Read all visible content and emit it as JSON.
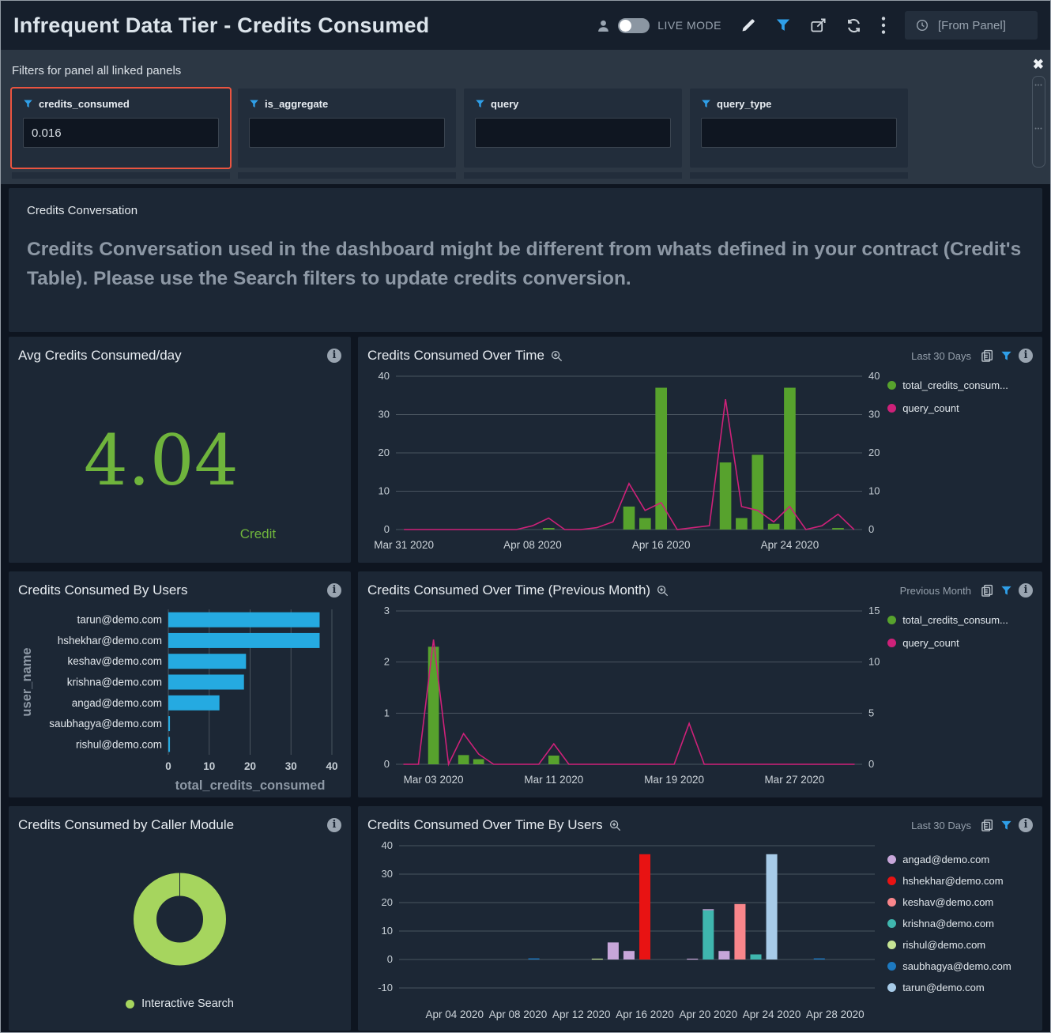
{
  "header": {
    "title": "Infrequent Data Tier - Credits Consumed",
    "live_mode_label": "LIVE MODE",
    "time_range": "[From Panel]"
  },
  "filters": {
    "heading": "Filters for panel all linked panels",
    "items": [
      {
        "label": "credits_consumed",
        "value": "0.016",
        "highlighted": true
      },
      {
        "label": "is_aggregate",
        "value": "",
        "highlighted": false
      },
      {
        "label": "query",
        "value": "",
        "highlighted": false
      },
      {
        "label": "query_type",
        "value": "",
        "highlighted": false
      }
    ]
  },
  "note_panel": {
    "title": "Credits Conversation",
    "body": "Credits Conversation used in the dashboard might be different from whats defined in your contract (Credit's Table). Please use the Search filters to update credits conversion."
  },
  "panels": {
    "avg": {
      "title": "Avg Credits Consumed/day",
      "value": "4.04",
      "unit": "Credit"
    },
    "over_time": {
      "title": "Credits Consumed Over Time",
      "range": "Last 30 Days"
    },
    "by_users": {
      "title": "Credits Consumed By Users"
    },
    "prev_month": {
      "title": "Credits Consumed Over Time (Previous Month)",
      "range": "Previous Month"
    },
    "caller_module": {
      "title": "Credits Consumed by Caller Module"
    },
    "by_users_time": {
      "title": "Credits Consumed Over Time By Users",
      "range": "Last 30 Days"
    }
  },
  "colors": {
    "accent_blue": "#2f9fe8",
    "highlight_red": "#ea5440",
    "bar_green": "#57a22d",
    "line_magenta": "#ce2179",
    "bar_blue": "#25aae1",
    "donut_green": "#a6d55e",
    "big_number_green": "#6fb43c"
  },
  "chart_data": [
    {
      "id": "over_time",
      "type": "bar",
      "subtype": "bar+line",
      "title": "Credits Consumed Over Time",
      "x_days": 29,
      "x_start": "Mar 31 2020",
      "x_ticks": [
        [
          0,
          "Mar 31 2020"
        ],
        [
          8,
          "Apr 08 2020"
        ],
        [
          16,
          "Apr 16 2020"
        ],
        [
          24,
          "Apr 24 2020"
        ]
      ],
      "left_ticks": [
        0,
        10,
        20,
        30,
        40
      ],
      "left_max": 40,
      "right_ticks": [
        0,
        10,
        20,
        30,
        40
      ],
      "right_max": 40,
      "legend": [
        "total_credits_consum...",
        "query_count"
      ],
      "bars": {
        "name": "total_credits_consumed",
        "color": "#57a22d",
        "values": [
          0,
          0,
          0,
          0,
          0,
          0,
          0,
          0,
          0,
          0.4,
          0,
          0,
          0,
          0,
          6,
          3,
          37,
          0,
          0,
          0,
          17.5,
          3,
          19.5,
          1.5,
          37,
          0,
          0,
          0.4,
          0
        ]
      },
      "line": {
        "name": "query_count",
        "color": "#ce2179",
        "values": [
          0,
          0,
          0,
          0,
          0,
          0,
          0,
          0,
          1,
          3,
          0,
          0,
          0.5,
          2,
          12,
          5,
          7,
          0,
          0.5,
          1,
          34,
          6,
          5,
          2,
          6,
          0,
          1,
          4,
          0
        ]
      }
    },
    {
      "id": "by_users",
      "type": "bar",
      "subtype": "bar-horizontal",
      "title": "Credits Consumed By Users",
      "categories": [
        "tarun@demo.com",
        "hshekhar@demo.com",
        "keshav@demo.com",
        "krishna@demo.com",
        "angad@demo.com",
        "saubhagya@demo.com",
        "rishul@demo.com"
      ],
      "values": [
        37,
        37,
        19,
        18.5,
        12.5,
        0.4,
        0.4
      ],
      "color": "#25aae1",
      "x_ticks": [
        0,
        10,
        20,
        30,
        40
      ],
      "x_max": 40,
      "xlabel": "total_credits_consumed",
      "ylabel": "user_name"
    },
    {
      "id": "prev_month",
      "type": "bar",
      "subtype": "bar+line",
      "title": "Credits Consumed Over Time (Previous Month)",
      "x_days": 31,
      "x_start": "Mar 01 2020",
      "x_ticks": [
        [
          2,
          "Mar 03 2020"
        ],
        [
          10,
          "Mar 11 2020"
        ],
        [
          18,
          "Mar 19 2020"
        ],
        [
          26,
          "Mar 27 2020"
        ]
      ],
      "left_ticks": [
        0,
        1,
        2,
        3
      ],
      "left_max": 3,
      "right_ticks": [
        0,
        5,
        10,
        15
      ],
      "right_max": 15,
      "legend": [
        "total_credits_consum...",
        "query_count"
      ],
      "bars": {
        "name": "total_credits_consumed",
        "color": "#57a22d",
        "values": [
          0,
          0,
          2.3,
          0,
          0.18,
          0.1,
          0,
          0,
          0,
          0,
          0.17,
          0,
          0,
          0,
          0,
          0,
          0,
          0,
          0,
          0,
          0,
          0,
          0,
          0,
          0,
          0,
          0,
          0,
          0,
          0,
          0
        ]
      },
      "line": {
        "name": "query_count",
        "color": "#ce2179",
        "values": [
          0,
          0,
          12.2,
          0,
          3,
          1,
          0,
          0,
          0,
          0,
          2,
          0,
          0,
          0,
          0,
          0,
          0,
          0,
          0,
          4,
          0,
          0,
          0,
          0,
          0,
          0,
          0,
          0,
          0,
          0,
          0
        ]
      }
    },
    {
      "id": "caller_module",
      "type": "pie",
      "title": "Credits Consumed by Caller Module",
      "slices": [
        {
          "label": "Interactive Search",
          "value": 100,
          "color": "#a6d55e"
        }
      ]
    },
    {
      "id": "by_users_time",
      "type": "bar",
      "subtype": "stacked-bar",
      "title": "Credits Consumed Over Time By Users",
      "x_days": 30,
      "x_start": "Apr 01 2020",
      "x_ticks": [
        [
          3,
          "Apr 04 2020"
        ],
        [
          7,
          "Apr 08 2020"
        ],
        [
          11,
          "Apr 12 2020"
        ],
        [
          15,
          "Apr 16 2020"
        ],
        [
          19,
          "Apr 20 2020"
        ],
        [
          23,
          "Apr 24 2020"
        ],
        [
          27,
          "Apr 28 2020"
        ]
      ],
      "left_ticks": [
        -10,
        0,
        10,
        20,
        30,
        40
      ],
      "left_min": -10,
      "left_max": 40,
      "series": [
        {
          "name": "angad@demo.com",
          "color": "#c7a6d9",
          "values": [
            0,
            0,
            0,
            0,
            0,
            0,
            0,
            0,
            0,
            0,
            0,
            0,
            0,
            6,
            3,
            0,
            0,
            0,
            0.3,
            0.4,
            3,
            0,
            0,
            0,
            0,
            0,
            0,
            0,
            0,
            0
          ]
        },
        {
          "name": "hshekhar@demo.com",
          "color": "#e81313",
          "values": [
            0,
            0,
            0,
            0,
            0,
            0,
            0,
            0,
            0,
            0,
            0,
            0,
            0,
            0,
            0,
            37,
            0,
            0,
            0,
            0,
            0,
            0,
            0,
            0,
            0,
            0,
            0,
            0,
            0,
            0
          ]
        },
        {
          "name": "keshav@demo.com",
          "color": "#f9868b",
          "values": [
            0,
            0,
            0,
            0,
            0,
            0,
            0,
            0,
            0,
            0,
            0,
            0,
            0,
            0,
            0,
            0,
            0,
            0,
            0,
            0,
            0,
            19.5,
            0,
            0,
            0,
            0,
            0,
            0,
            0,
            0
          ]
        },
        {
          "name": "krishna@demo.com",
          "color": "#3fb6ae",
          "values": [
            0,
            0,
            0,
            0,
            0,
            0,
            0,
            0,
            0,
            0,
            0,
            0,
            0,
            0,
            0,
            0,
            0,
            0,
            0,
            17.3,
            0,
            0,
            1.8,
            0,
            0,
            0,
            0,
            0,
            0,
            0
          ]
        },
        {
          "name": "rishul@demo.com",
          "color": "#c6e494",
          "values": [
            0,
            0,
            0,
            0,
            0,
            0,
            0,
            0,
            0,
            0,
            0,
            0,
            0.3,
            0,
            0,
            0,
            0,
            0,
            0,
            0,
            0,
            0,
            0,
            0,
            0,
            0,
            0,
            0,
            0,
            0
          ]
        },
        {
          "name": "saubhagya@demo.com",
          "color": "#1d79c0",
          "values": [
            0,
            0,
            0,
            0,
            0,
            0,
            0,
            0,
            0.4,
            0,
            0,
            0,
            0,
            0,
            0,
            0,
            0,
            0,
            0,
            0,
            0,
            0,
            0,
            0,
            0,
            0,
            0.4,
            0,
            0,
            0
          ]
        },
        {
          "name": "tarun@demo.com",
          "color": "#a7cbe8",
          "values": [
            0,
            0,
            0,
            0,
            0,
            0,
            0,
            0,
            0,
            0,
            0,
            0,
            0,
            0,
            0,
            0,
            0,
            0,
            0,
            0,
            0,
            0,
            0,
            37,
            0,
            0,
            0,
            0,
            0,
            0
          ]
        }
      ]
    }
  ]
}
